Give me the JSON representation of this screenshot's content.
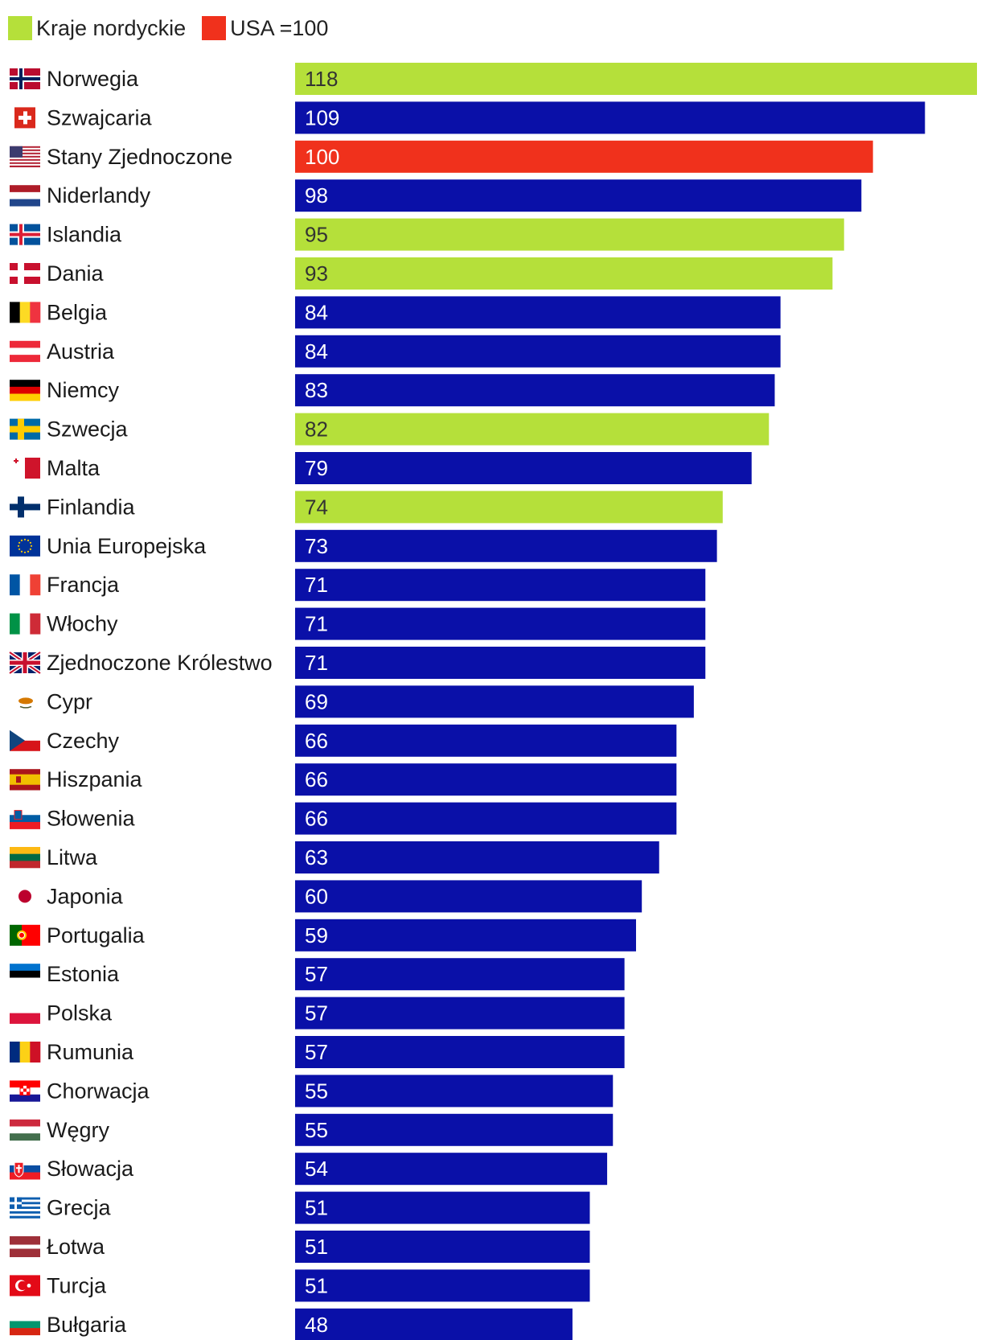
{
  "legend": {
    "nordic_label": "Kraje nordyckie",
    "usa_label": "USA =100"
  },
  "colors": {
    "nordic": "#b5e03a",
    "usa": "#f0311c",
    "other": "#0a10a8",
    "text_light": "#ffffff",
    "text_dark": "#333333"
  },
  "chart_data": {
    "type": "bar",
    "orientation": "horizontal",
    "title": "",
    "xlabel": "",
    "ylabel": "",
    "xlim": [
      0,
      118
    ],
    "reference": "USA = 100",
    "categories": [
      "Norwegia",
      "Szwajcaria",
      "Stany Zjednoczone",
      "Niderlandy",
      "Islandia",
      "Dania",
      "Belgia",
      "Austria",
      "Niemcy",
      "Szwecja",
      "Malta",
      "Finlandia",
      "Unia Europejska",
      "Francja",
      "Włochy",
      "Zjednoczone Królestwo",
      "Cypr",
      "Czechy",
      "Hiszpania",
      "Słowenia",
      "Litwa",
      "Japonia",
      "Portugalia",
      "Estonia",
      "Polska",
      "Rumunia",
      "Chorwacja",
      "Węgry",
      "Słowacja",
      "Grecja",
      "Łotwa",
      "Turcja",
      "Bułgaria"
    ],
    "values": [
      118,
      109,
      100,
      98,
      95,
      93,
      84,
      84,
      83,
      82,
      79,
      74,
      73,
      71,
      71,
      71,
      69,
      66,
      66,
      66,
      63,
      60,
      59,
      57,
      57,
      57,
      55,
      55,
      54,
      51,
      51,
      51,
      48
    ],
    "groups": [
      "nordic",
      "other",
      "usa",
      "other",
      "nordic",
      "nordic",
      "other",
      "other",
      "other",
      "nordic",
      "other",
      "nordic",
      "other",
      "other",
      "other",
      "other",
      "other",
      "other",
      "other",
      "other",
      "other",
      "other",
      "other",
      "other",
      "other",
      "other",
      "other",
      "other",
      "other",
      "other",
      "other",
      "other",
      "other"
    ],
    "flags": [
      "norway-flag-icon",
      "switzerland-flag-icon",
      "usa-flag-icon",
      "netherlands-flag-icon",
      "iceland-flag-icon",
      "denmark-flag-icon",
      "belgium-flag-icon",
      "austria-flag-icon",
      "germany-flag-icon",
      "sweden-flag-icon",
      "malta-flag-icon",
      "finland-flag-icon",
      "eu-flag-icon",
      "france-flag-icon",
      "italy-flag-icon",
      "uk-flag-icon",
      "cyprus-flag-icon",
      "czechia-flag-icon",
      "spain-flag-icon",
      "slovenia-flag-icon",
      "lithuania-flag-icon",
      "japan-flag-icon",
      "portugal-flag-icon",
      "estonia-flag-icon",
      "poland-flag-icon",
      "romania-flag-icon",
      "croatia-flag-icon",
      "hungary-flag-icon",
      "slovakia-flag-icon",
      "greece-flag-icon",
      "latvia-flag-icon",
      "turkey-flag-icon",
      "bulgaria-flag-icon"
    ]
  }
}
